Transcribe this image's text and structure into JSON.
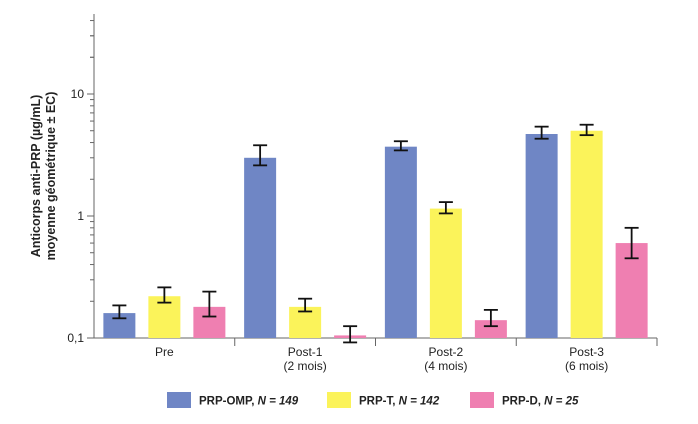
{
  "chart_data": {
    "type": "bar",
    "scale": "log",
    "ylim": [
      0.1,
      30
    ],
    "yticks_major": [
      0.1,
      1,
      10
    ],
    "ytick_labels": [
      "0,1",
      "1",
      "10"
    ],
    "ylabel_line1": "Anticorps anti-PRP (µg/mL)",
    "ylabel_line2": "moyenne géométrique ± EC)",
    "categories": [
      {
        "line1": "Pre",
        "line2": ""
      },
      {
        "line1": "Post-1",
        "line2": "(2 mois)"
      },
      {
        "line1": "Post-2",
        "line2": "(4 mois)"
      },
      {
        "line1": "Post-3",
        "line2": "(6 mois)"
      }
    ],
    "series": [
      {
        "name": "PRP-OMP",
        "n_label": "N = 149",
        "color": "#6f86c5",
        "values": [
          0.16,
          3.0,
          3.7,
          4.7
        ],
        "err_low": [
          0.145,
          2.6,
          3.45,
          4.3
        ],
        "err_high": [
          0.185,
          3.8,
          4.1,
          5.4
        ]
      },
      {
        "name": "PRP-T",
        "n_label": "N = 142",
        "color": "#fbf35a",
        "values": [
          0.22,
          0.18,
          1.15,
          5.0
        ],
        "err_low": [
          0.195,
          0.165,
          1.05,
          4.6
        ],
        "err_high": [
          0.26,
          0.21,
          1.3,
          5.6
        ]
      },
      {
        "name": "PRP-D",
        "n_label": "N = 25",
        "color": "#ef7fb1",
        "values": [
          0.18,
          0.105,
          0.14,
          0.6
        ],
        "err_low": [
          0.15,
          0.092,
          0.125,
          0.45
        ],
        "err_high": [
          0.24,
          0.125,
          0.17,
          0.8
        ]
      }
    ],
    "grid": false,
    "legend_position": "bottom"
  }
}
